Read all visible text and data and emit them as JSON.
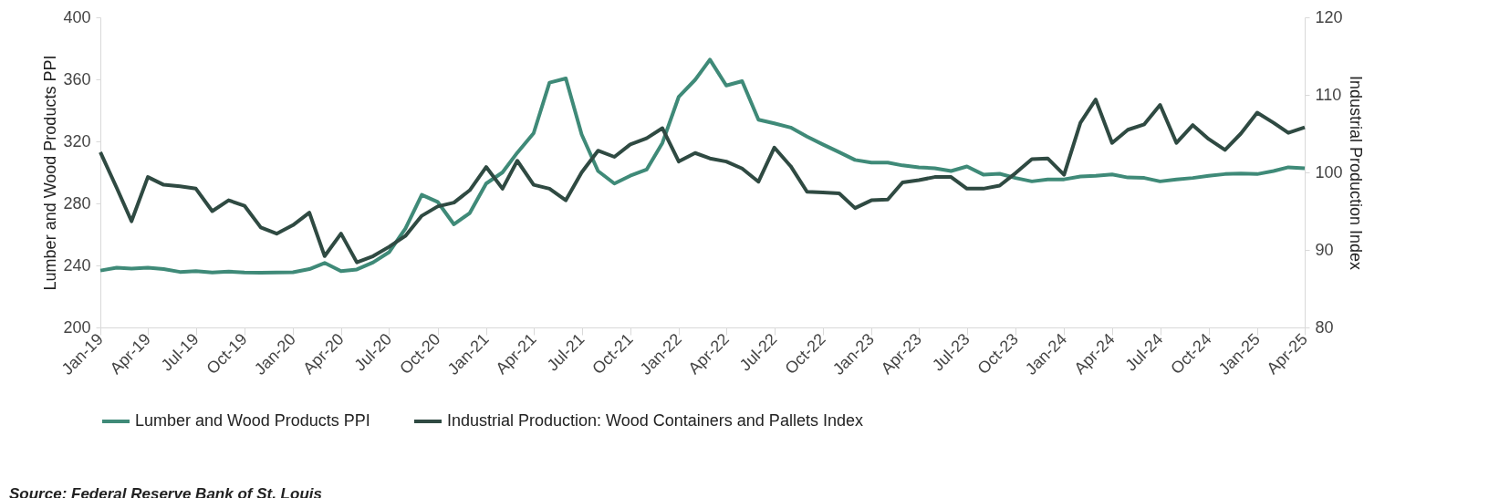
{
  "chart_data": {
    "type": "line",
    "ylabel": "Lumber and Wood Products PPI",
    "y2label": "Industrial Production Index",
    "x": [
      "2019-01",
      "2019-02",
      "2019-03",
      "2019-04",
      "2019-05",
      "2019-06",
      "2019-07",
      "2019-08",
      "2019-09",
      "2019-10",
      "2019-11",
      "2019-12",
      "2020-01",
      "2020-02",
      "2020-03",
      "2020-04",
      "2020-05",
      "2020-06",
      "2020-07",
      "2020-08",
      "2020-09",
      "2020-10",
      "2020-11",
      "2020-12",
      "2021-01",
      "2021-02",
      "2021-03",
      "2021-04",
      "2021-05",
      "2021-06",
      "2021-07",
      "2021-08",
      "2021-09",
      "2021-10",
      "2021-11",
      "2021-12",
      "2022-01",
      "2022-02",
      "2022-03",
      "2022-04",
      "2022-05",
      "2022-06",
      "2022-07",
      "2022-08",
      "2022-09",
      "2022-10",
      "2022-11",
      "2022-12",
      "2023-01",
      "2023-02",
      "2023-03",
      "2023-04",
      "2023-05",
      "2023-06",
      "2023-07",
      "2023-08",
      "2023-09",
      "2023-10",
      "2023-11",
      "2023-12",
      "2024-01",
      "2024-02",
      "2024-03",
      "2024-04",
      "2024-05",
      "2024-06",
      "2024-07",
      "2024-08",
      "2024-09",
      "2024-10",
      "2024-11",
      "2024-12",
      "2025-01",
      "2025-02",
      "2025-03",
      "2025-04"
    ],
    "series": [
      {
        "name": "Lumber and Wood Products PPI",
        "color": "#3f8a78",
        "values": [
          236.7,
          238.5,
          238,
          238.5,
          237.6,
          235.8,
          236.3,
          235.4,
          236,
          235.4,
          235.3,
          235.4,
          235.6,
          237.6,
          241.6,
          236.3,
          237.4,
          242,
          248.5,
          263.8,
          285.5,
          281,
          266.5,
          273.8,
          292.8,
          300,
          312.7,
          325.3,
          357.9,
          360.6,
          324.4,
          300.9,
          292.8,
          297.8,
          301.8,
          319,
          348.8,
          359.7,
          372.7,
          356,
          358.8,
          334,
          331.6,
          328.9,
          323.1,
          318,
          313,
          308,
          306.3,
          306.3,
          304.5,
          303.3,
          302.7,
          300.9,
          303.8,
          298.6,
          299.1,
          296.4,
          294.2,
          295.5,
          295.5,
          297.3,
          297.8,
          298.7,
          296.7,
          296.4,
          294.2,
          295.5,
          296.4,
          297.8,
          298.9,
          299.3,
          298.9,
          300.9,
          303.3,
          302.7
        ]
      },
      {
        "name": "Industrial Production: Wood Containers and Pallets Index",
        "color": "#2f4a42",
        "axis": "y2",
        "values": [
          102.6,
          98,
          93.7,
          99.4,
          98.4,
          98.2,
          97.9,
          95,
          96.4,
          95.7,
          92.9,
          92.1,
          93.2,
          94.8,
          89.2,
          92.1,
          88.4,
          89.2,
          90.4,
          91.8,
          94.4,
          95.6,
          96.1,
          97.7,
          100.7,
          97.9,
          101.5,
          98.4,
          97.9,
          96.4,
          100,
          102.8,
          102,
          103.6,
          104.4,
          105.7,
          101.4,
          102.5,
          101.8,
          101.4,
          100.5,
          98.8,
          103.2,
          100.8,
          97.5,
          97.4,
          97.3,
          95.4,
          96.4,
          96.5,
          98.7,
          99,
          99.4,
          99.4,
          97.9,
          97.9,
          98.3,
          99.9,
          101.7,
          101.8,
          99.7,
          106.4,
          109.4,
          103.8,
          105.5,
          106.2,
          108.7,
          103.8,
          106.1,
          104.3,
          102.9,
          105,
          107.7,
          106.4,
          105.1,
          105.8
        ]
      }
    ],
    "xlim": [
      "2019-01",
      "2025-04"
    ],
    "xticks": [
      {
        "value": "2019-01",
        "label": "Jan-19"
      },
      {
        "value": "2019-04",
        "label": "Apr-19"
      },
      {
        "value": "2019-07",
        "label": "Jul-19"
      },
      {
        "value": "2019-10",
        "label": "Oct-19"
      },
      {
        "value": "2020-01",
        "label": "Jan-20"
      },
      {
        "value": "2020-04",
        "label": "Apr-20"
      },
      {
        "value": "2020-07",
        "label": "Jul-20"
      },
      {
        "value": "2020-10",
        "label": "Oct-20"
      },
      {
        "value": "2021-01",
        "label": "Jan-21"
      },
      {
        "value": "2021-04",
        "label": "Apr-21"
      },
      {
        "value": "2021-07",
        "label": "Jul-21"
      },
      {
        "value": "2021-10",
        "label": "Oct-21"
      },
      {
        "value": "2022-01",
        "label": "Jan-22"
      },
      {
        "value": "2022-04",
        "label": "Apr-22"
      },
      {
        "value": "2022-07",
        "label": "Jul-22"
      },
      {
        "value": "2022-10",
        "label": "Oct-22"
      },
      {
        "value": "2023-01",
        "label": "Jan-23"
      },
      {
        "value": "2023-04",
        "label": "Apr-23"
      },
      {
        "value": "2023-07",
        "label": "Jul-23"
      },
      {
        "value": "2023-10",
        "label": "Oct-23"
      },
      {
        "value": "2024-01",
        "label": "Jan-24"
      },
      {
        "value": "2024-04",
        "label": "Apr-24"
      },
      {
        "value": "2024-07",
        "label": "Jul-24"
      },
      {
        "value": "2024-10",
        "label": "Oct-24"
      },
      {
        "value": "2025-01",
        "label": "Jan-25"
      },
      {
        "value": "2025-04",
        "label": "Apr-25"
      }
    ],
    "ylim": [
      200,
      400
    ],
    "yticks": [
      200,
      240,
      280,
      320,
      360,
      400
    ],
    "y2lim": [
      80,
      120
    ],
    "y2ticks": [
      80,
      90,
      100,
      110,
      120
    ],
    "grid": false,
    "legend": "bottom",
    "annotations": [
      "Source: Federal Reserve Bank of St. Louis"
    ]
  }
}
